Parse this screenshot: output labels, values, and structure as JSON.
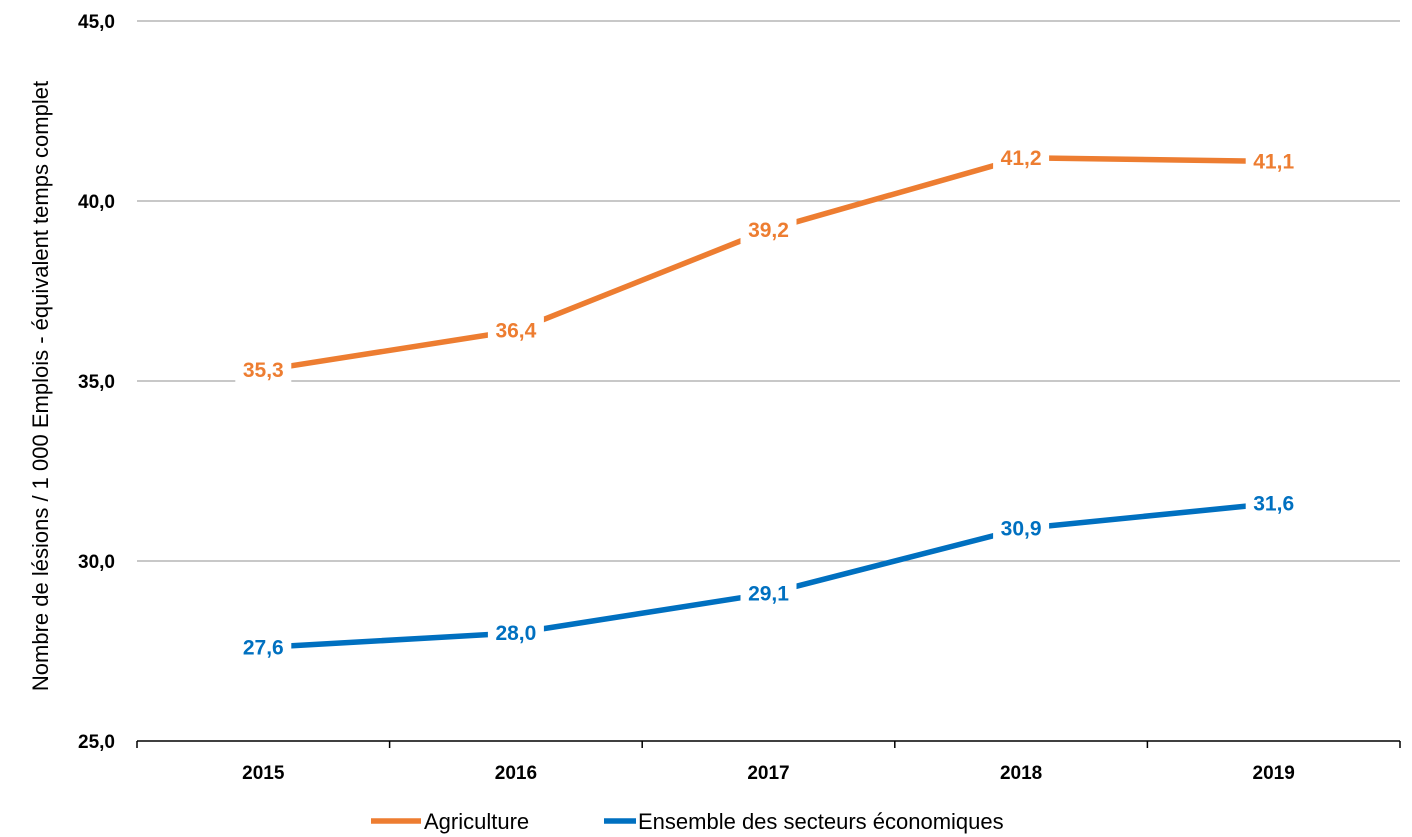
{
  "chart_data": {
    "type": "line",
    "categories": [
      "2015",
      "2016",
      "2017",
      "2018",
      "2019"
    ],
    "series": [
      {
        "name": "Agriculture",
        "color": "#ED7D31",
        "values": [
          35.3,
          36.4,
          39.2,
          41.2,
          41.1
        ],
        "labels": [
          "35,3",
          "36,4",
          "39,2",
          "41,2",
          "41,1"
        ]
      },
      {
        "name": "Ensemble des secteurs économiques",
        "color": "#0070C0",
        "values": [
          27.6,
          28.0,
          29.1,
          30.9,
          31.6
        ],
        "labels": [
          "27,6",
          "28,0",
          "29,1",
          "30,9",
          "31,6"
        ]
      }
    ],
    "ylabel": "Nombre de lésions / 1 000 Emplois - équivalent temps complet",
    "xlabel": "",
    "ylim": [
      25,
      45
    ],
    "yticks": [
      25,
      30,
      35,
      40,
      45
    ],
    "ytick_labels": [
      "25,0",
      "30,0",
      "35,0",
      "40,0",
      "45,0"
    ],
    "grid": true,
    "legend_position": "bottom"
  }
}
